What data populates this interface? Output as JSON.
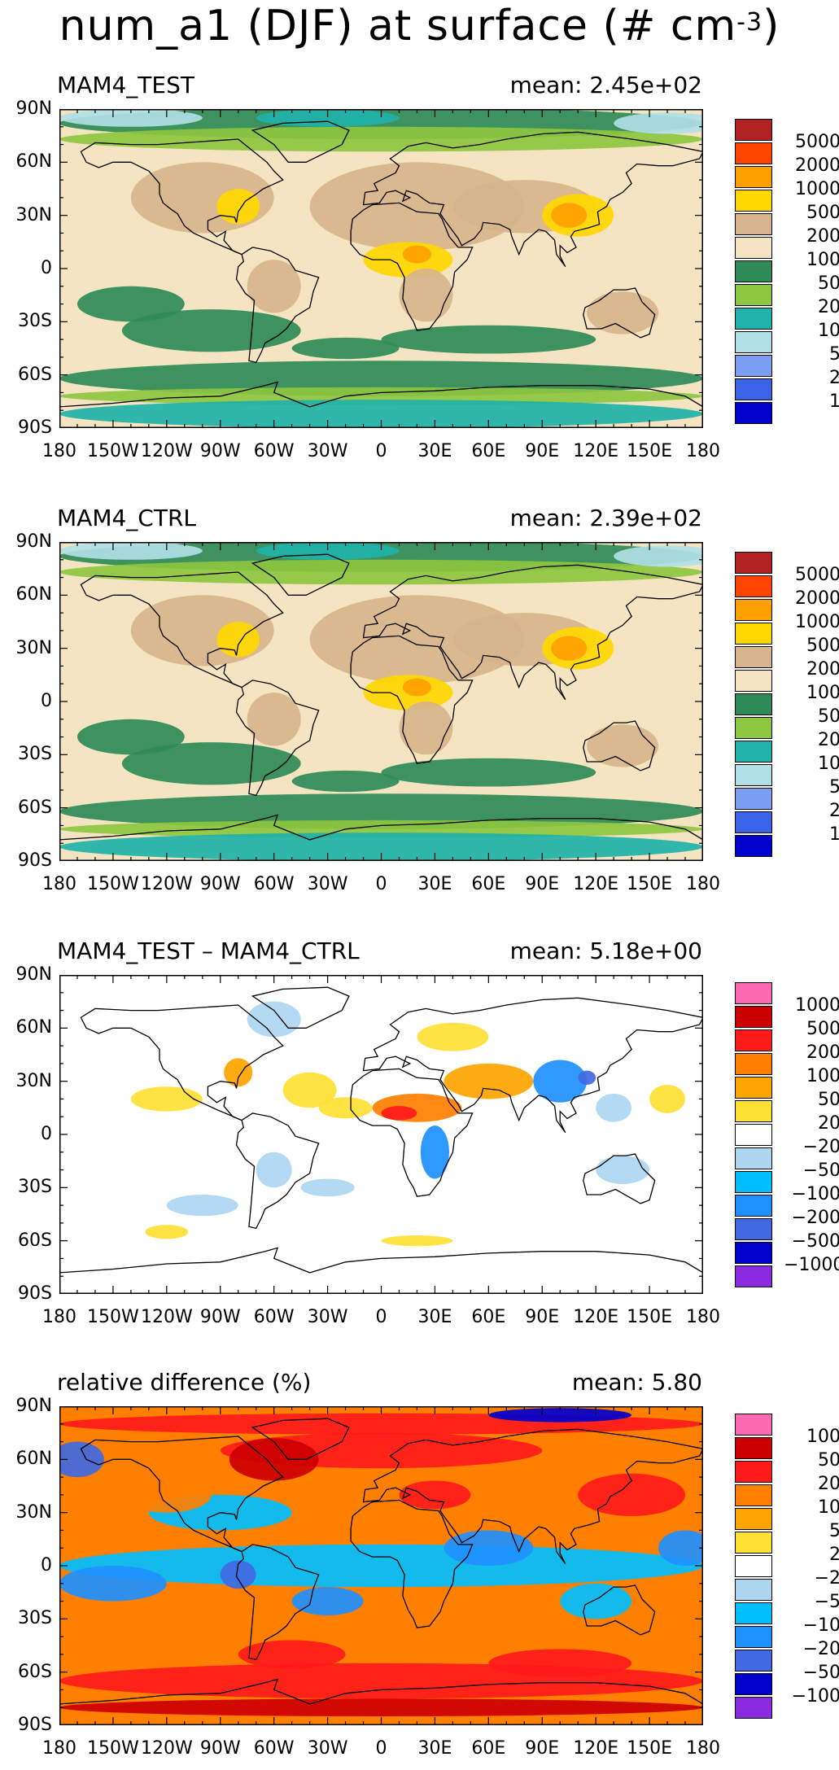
{
  "figure": {
    "title_main": "num_a1 (DJF) at surface (# cm",
    "title_sup": "-3",
    "title_close": ")"
  },
  "lat_labels": [
    "90N",
    "60N",
    "30N",
    "0",
    "30S",
    "60S",
    "90S"
  ],
  "lon_labels": [
    "180",
    "150W",
    "120W",
    "90W",
    "60W",
    "30W",
    "0",
    "30E",
    "60E",
    "90E",
    "120E",
    "150E",
    "180"
  ],
  "panels": [
    {
      "id": "test",
      "title": "MAM4_TEST",
      "mean": "mean: 2.45e+02",
      "background": "#f4e4c1",
      "legend_colors": [
        "#b22222",
        "#ff4500",
        "#ff9f00",
        "#ffd700",
        "#d7b48c",
        "#f4e4c1",
        "#2e8b57",
        "#8dc63f",
        "#20b2aa",
        "#b0e0e6",
        "#7b9ff2",
        "#3b63e8",
        "#0000cd"
      ],
      "legend_labels": [
        "5000",
        "2000",
        "1000",
        "500",
        "200",
        "100",
        "50",
        "20",
        "10",
        "5",
        "2",
        "1"
      ]
    },
    {
      "id": "ctrl",
      "title": "MAM4_CTRL",
      "mean": "mean: 2.39e+02",
      "background": "#f4e4c1",
      "legend_colors": [
        "#b22222",
        "#ff4500",
        "#ff9f00",
        "#ffd700",
        "#d7b48c",
        "#f4e4c1",
        "#2e8b57",
        "#8dc63f",
        "#20b2aa",
        "#b0e0e6",
        "#7b9ff2",
        "#3b63e8",
        "#0000cd"
      ],
      "legend_labels": [
        "5000",
        "2000",
        "1000",
        "500",
        "200",
        "100",
        "50",
        "20",
        "10",
        "5",
        "2",
        "1"
      ]
    },
    {
      "id": "diff",
      "title": "MAM4_TEST – MAM4_CTRL",
      "mean": "mean: 5.18e+00",
      "background": "#ffffff",
      "legend_colors": [
        "#ff69b4",
        "#cc0000",
        "#ff1a1a",
        "#ff7f00",
        "#ffa500",
        "#ffe033",
        "#ffffff",
        "#aed6f1",
        "#00bfff",
        "#1e90ff",
        "#4169e1",
        "#0000cd",
        "#8a2be2"
      ],
      "legend_labels": [
        "1000",
        "500",
        "200",
        "100",
        "50",
        "20",
        "−20",
        "−50",
        "−100",
        "−200",
        "−500",
        "−1000"
      ]
    },
    {
      "id": "rel",
      "title": "relative difference (%)",
      "mean": "mean:   5.80",
      "background": "#ff7f00",
      "legend_colors": [
        "#ff69b4",
        "#cc0000",
        "#ff1a1a",
        "#ff7f00",
        "#ffa500",
        "#ffe033",
        "#ffffff",
        "#aed6f1",
        "#00bfff",
        "#1e90ff",
        "#4169e1",
        "#0000cd",
        "#8a2be2"
      ],
      "legend_labels": [
        "100",
        "50",
        "20",
        "10",
        "5",
        "2",
        "−2",
        "−5",
        "−10",
        "−20",
        "−50",
        "−100"
      ]
    }
  ]
}
